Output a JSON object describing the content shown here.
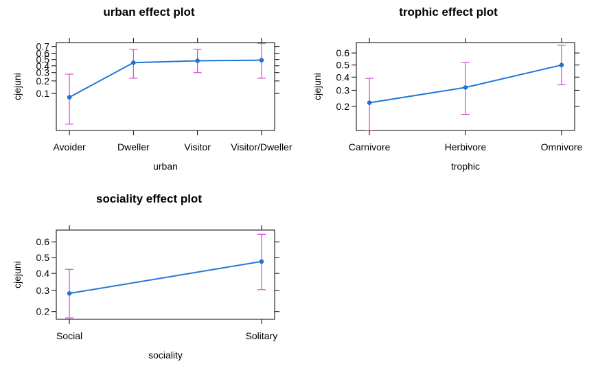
{
  "chart_data": [
    {
      "type": "line",
      "title": "urban effect plot",
      "xlabel": "urban",
      "ylabel": "cjejuni",
      "yscale": "logit",
      "categories": [
        "Avoider",
        "Dweller",
        "Visitor",
        "Visitor/Dweller"
      ],
      "yticks": [
        0.1,
        0.2,
        0.3,
        0.4,
        0.5,
        0.6,
        0.7
      ],
      "ylim": [
        0.01,
        0.75
      ],
      "series": [
        {
          "values": [
            0.08,
            0.45,
            0.48,
            0.49
          ],
          "lower": [
            0.015,
            0.23,
            0.3,
            0.23
          ],
          "upper": [
            0.28,
            0.66,
            0.66,
            0.74
          ]
        }
      ],
      "grid": false,
      "line_color": "#1f78d8",
      "errorbar_color": "#e040e0"
    },
    {
      "type": "line",
      "title": "trophic effect plot",
      "xlabel": "trophic",
      "ylabel": "cjejuni",
      "yscale": "logit",
      "categories": [
        "Carnivore",
        "Herbivore",
        "Omnivore"
      ],
      "yticks": [
        0.2,
        0.3,
        0.4,
        0.5,
        0.6
      ],
      "ylim": [
        0.1,
        0.68
      ],
      "series": [
        {
          "values": [
            0.22,
            0.32,
            0.5
          ],
          "lower": [
            0.1,
            0.16,
            0.34
          ],
          "upper": [
            0.39,
            0.52,
            0.66
          ]
        }
      ],
      "grid": false,
      "line_color": "#1f78d8",
      "errorbar_color": "#e040e0"
    },
    {
      "type": "line",
      "title": "sociality effect plot",
      "xlabel": "sociality",
      "ylabel": "cjejuni",
      "yscale": "logit",
      "categories": [
        "Social",
        "Solitary"
      ],
      "yticks": [
        0.2,
        0.3,
        0.4,
        0.5,
        0.6
      ],
      "ylim": [
        0.17,
        0.67
      ],
      "series": [
        {
          "values": [
            0.285,
            0.475
          ],
          "lower": [
            0.175,
            0.305
          ],
          "upper": [
            0.425,
            0.645
          ]
        }
      ],
      "grid": false,
      "line_color": "#1f78d8",
      "errorbar_color": "#e040e0"
    }
  ]
}
